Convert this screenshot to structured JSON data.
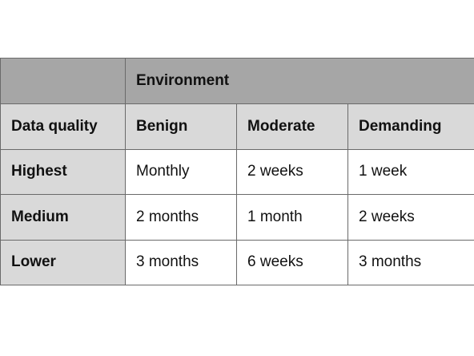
{
  "table": {
    "group_header": "Environment",
    "column_headers": [
      "Data quality",
      "Benign",
      "Moderate",
      "Demanding"
    ],
    "rows": [
      {
        "label": "Highest",
        "values": [
          "Monthly",
          "2 weeks",
          "1 week"
        ]
      },
      {
        "label": "Medium",
        "values": [
          "2 months",
          "1 month",
          "2 weeks"
        ]
      },
      {
        "label": "Lower",
        "values": [
          "3 months",
          "6 weeks",
          "3 months"
        ]
      }
    ]
  },
  "colors": {
    "header_dark": "#a6a6a6",
    "header_light": "#d9d9d9",
    "cell_white": "#ffffff",
    "border": "#6a6a6a"
  }
}
